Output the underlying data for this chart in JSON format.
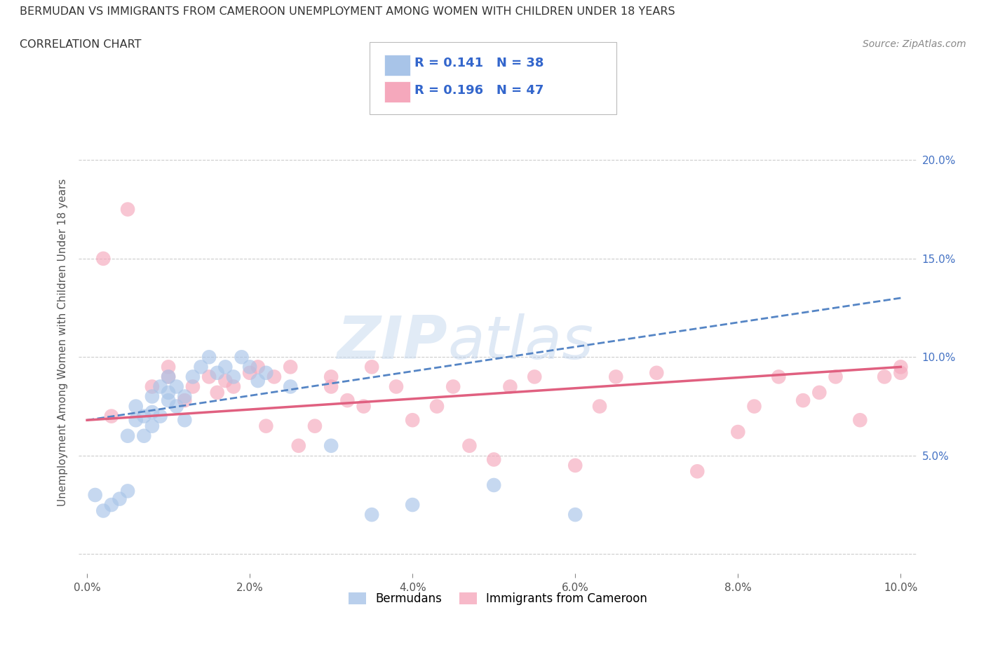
{
  "title": "BERMUDAN VS IMMIGRANTS FROM CAMEROON UNEMPLOYMENT AMONG WOMEN WITH CHILDREN UNDER 18 YEARS",
  "subtitle": "CORRELATION CHART",
  "source": "Source: ZipAtlas.com",
  "ylabel": "Unemployment Among Women with Children Under 18 years",
  "xlim": [
    -0.001,
    0.102
  ],
  "ylim": [
    -0.01,
    0.225
  ],
  "xticks": [
    0.0,
    0.02,
    0.04,
    0.06,
    0.08,
    0.1
  ],
  "yticks": [
    0.0,
    0.05,
    0.1,
    0.15,
    0.2
  ],
  "xtick_labels": [
    "0.0%",
    "2.0%",
    "4.0%",
    "6.0%",
    "8.0%",
    "10.0%"
  ],
  "ytick_labels_right": [
    "",
    "5.0%",
    "10.0%",
    "15.0%",
    "20.0%"
  ],
  "grid_color": "#cccccc",
  "background_color": "#ffffff",
  "watermark_zip": "ZIP",
  "watermark_atlas": "atlas",
  "bermudan_color": "#a8c4e8",
  "cameroon_color": "#f5a8bc",
  "bermudan_R": 0.141,
  "bermudan_N": 38,
  "cameroon_R": 0.196,
  "cameroon_N": 47,
  "bermudan_line_color": "#5585c5",
  "cameroon_line_color": "#e06080",
  "bermudan_x": [
    0.001,
    0.002,
    0.003,
    0.004,
    0.005,
    0.005,
    0.006,
    0.006,
    0.007,
    0.007,
    0.008,
    0.008,
    0.008,
    0.009,
    0.009,
    0.01,
    0.01,
    0.01,
    0.011,
    0.011,
    0.012,
    0.012,
    0.013,
    0.014,
    0.015,
    0.016,
    0.017,
    0.018,
    0.019,
    0.02,
    0.021,
    0.022,
    0.025,
    0.03,
    0.035,
    0.04,
    0.05,
    0.06
  ],
  "bermudan_y": [
    0.03,
    0.022,
    0.025,
    0.028,
    0.032,
    0.06,
    0.068,
    0.075,
    0.06,
    0.07,
    0.065,
    0.072,
    0.08,
    0.07,
    0.085,
    0.078,
    0.082,
    0.09,
    0.075,
    0.085,
    0.068,
    0.08,
    0.09,
    0.095,
    0.1,
    0.092,
    0.095,
    0.09,
    0.1,
    0.095,
    0.088,
    0.092,
    0.085,
    0.055,
    0.02,
    0.025,
    0.035,
    0.02
  ],
  "cameroon_x": [
    0.002,
    0.003,
    0.005,
    0.008,
    0.01,
    0.01,
    0.012,
    0.013,
    0.015,
    0.016,
    0.017,
    0.018,
    0.02,
    0.021,
    0.022,
    0.023,
    0.025,
    0.026,
    0.028,
    0.03,
    0.03,
    0.032,
    0.034,
    0.035,
    0.038,
    0.04,
    0.043,
    0.045,
    0.047,
    0.05,
    0.052,
    0.055,
    0.06,
    0.063,
    0.065,
    0.07,
    0.075,
    0.08,
    0.082,
    0.085,
    0.088,
    0.09,
    0.092,
    0.095,
    0.098,
    0.1,
    0.1
  ],
  "cameroon_y": [
    0.15,
    0.07,
    0.175,
    0.085,
    0.09,
    0.095,
    0.078,
    0.085,
    0.09,
    0.082,
    0.088,
    0.085,
    0.092,
    0.095,
    0.065,
    0.09,
    0.095,
    0.055,
    0.065,
    0.085,
    0.09,
    0.078,
    0.075,
    0.095,
    0.085,
    0.068,
    0.075,
    0.085,
    0.055,
    0.048,
    0.085,
    0.09,
    0.045,
    0.075,
    0.09,
    0.092,
    0.042,
    0.062,
    0.075,
    0.09,
    0.078,
    0.082,
    0.09,
    0.068,
    0.09,
    0.092,
    0.095
  ]
}
